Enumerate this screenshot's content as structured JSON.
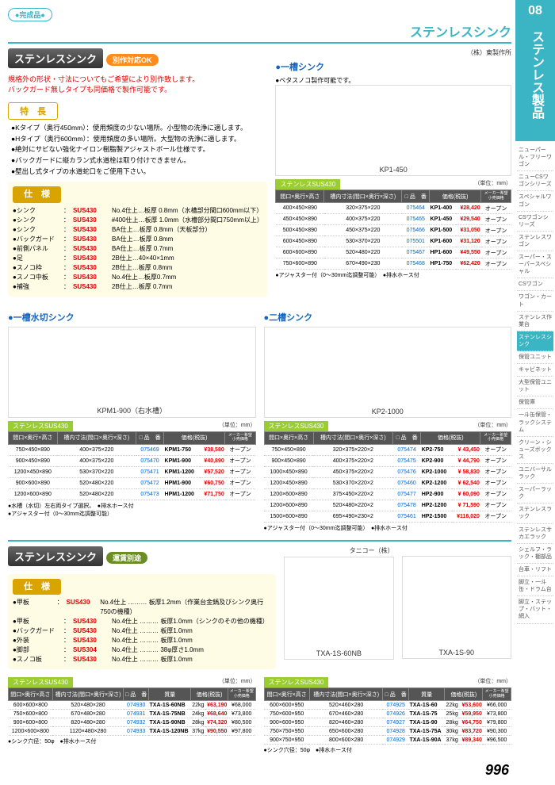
{
  "category": {
    "num": "08",
    "title": "ステンレス製品"
  },
  "sideItems": [
    "ニューパール・フリーワゴン",
    "ニューCSワゴンシリーズ",
    "スペシャルワゴン",
    "CSワゴンシリーズ",
    "ステンレスワゴン",
    "スーパー・スーパースペシャル",
    "CSワゴン",
    "ワゴン・カート",
    "ステンレス作業台",
    "ステンレスシンク",
    "保管ユニット",
    "キャビネット",
    "大型保管ユニット",
    "保管庫",
    "一斗缶保管・ラックシステム",
    "クリーン・シューズボックス",
    "ユニバーサルラック",
    "スーパーラック",
    "ステンレスラック",
    "ステンレスサカエラック",
    "シェルフ・ラック・棚部品",
    "台車・リフト",
    "脚立・一斗缶・ドラム台",
    "脚立・ステップ・バット・網入"
  ],
  "sideActive": 9,
  "badgeComplete": "●完成品●",
  "pageTitle": "ステンレスシンク",
  "section1": {
    "header": "ステンレスシンク",
    "badge": "別作対応OK",
    "redNote": "規格外の形状・寸法についてもご希望により別作致します。\nバックガード無しタイプも同価格で製作可能です。",
    "featureHdr": "特　長",
    "features": [
      "●Kタイプ（奥行450mm）：使用頻度の少ない場所。小型物の洗浄に適します。",
      "●Hタイプ（奥行600mm）：使用頻度の多い場所。大型物の洗浄に適します。",
      "●絶対にサビない強化ナイロン樹脂製アジャストボール仕様です。",
      "●バックガードに縦カラン式水道栓は取り付けできません。",
      "●壁出し式タイプの水道蛇口をご使用下さい。"
    ],
    "specHdr": "仕　様",
    "specs": [
      {
        "label": "●シンク",
        "sus": "SUS430",
        "desc": "No.4仕上…板厚 0.8mm（水槽部分間口600mm以下）"
      },
      {
        "label": "●シンク",
        "sus": "SUS430",
        "desc": "#400仕上…板厚 1.0mm（水槽部分間口750mm以上）"
      },
      {
        "label": "●シンク",
        "sus": "SUS430",
        "desc": "BA仕上…板厚 0.8mm（天板部分）"
      },
      {
        "label": "●バックガード",
        "sus": "SUS430",
        "desc": "BA仕上…板厚 0.8mm"
      },
      {
        "label": "●前側パネル",
        "sus": "SUS430",
        "desc": "BA仕上…板厚 0.7mm"
      },
      {
        "label": "●足",
        "sus": "SUS430",
        "desc": "2B仕上…40×40×1mm"
      },
      {
        "label": "●スノコ枠",
        "sus": "SUS430",
        "desc": "2B仕上…板厚 0.8mm"
      },
      {
        "label": "●スノコ中板",
        "sus": "SUS430",
        "desc": "No.4仕上…板厚0.7mm"
      },
      {
        "label": "●補強",
        "sus": "SUS430",
        "desc": "2B仕上…板厚 0.7mm"
      }
    ]
  },
  "maker1": "（株）東製作所",
  "products": [
    {
      "title": "一槽シンク",
      "pre": "●ベタスノコ製作可能です。",
      "diagram": "KP1-450",
      "mat": "ステンレスSUS430",
      "unit": "（単位：mm）",
      "headers": [
        "間口×奥行×高さ",
        "槽内寸法(間口×奥行×深さ)",
        "□ 品　番",
        "価格(税抜)",
        ""
      ],
      "rows": [
        [
          "400×450×890",
          "320×375×220",
          "075464",
          "KP1-400",
          "¥28,420",
          "オープン"
        ],
        [
          "450×450×890",
          "400×375×220",
          "075465",
          "KP1-450",
          "¥29,540",
          "オープン"
        ],
        [
          "500×450×890",
          "450×375×220",
          "075466",
          "KP1-500",
          "¥31,050",
          "オープン"
        ],
        [
          "600×450×890",
          "530×370×220",
          "075501",
          "KP1-600",
          "¥31,120",
          "オープン"
        ],
        [
          "600×600×890",
          "520×480×220",
          "075467",
          "HP1-600",
          "¥49,550",
          "オープン"
        ],
        [
          "750×600×890",
          "670×490×230",
          "075468",
          "HP1-750",
          "¥62,420",
          "オープン"
        ]
      ],
      "note": "●アジャスター付（0～30mm迄調整可能）　●排水ホース付"
    },
    {
      "title": "一槽水切シンク",
      "diagram": "KPM1-900（右水槽）",
      "mat": "ステンレスSUS430",
      "unit": "（単位：mm）",
      "headers": [
        "間口×奥行×高さ",
        "槽内寸法(間口×奥行×深さ)",
        "□ 品　番",
        "価格(税抜)",
        ""
      ],
      "rows": [
        [
          "750×450×890",
          "400×375×220",
          "075469",
          "KPM1-750",
          "¥38,580",
          "オープン"
        ],
        [
          "900×450×890",
          "400×375×220",
          "075470",
          "KPM1-900",
          "¥40,890",
          "オープン"
        ],
        [
          "1200×450×890",
          "530×370×220",
          "075471",
          "KPM1-1200",
          "¥57,520",
          "オープン"
        ],
        [
          "900×600×890",
          "520×480×220",
          "075472",
          "HPM1-900",
          "¥60,750",
          "オープン"
        ],
        [
          "1200×600×890",
          "520×480×220",
          "075473",
          "HPM1-1200",
          "¥71,750",
          "オープン"
        ]
      ],
      "note": "●水槽（水切）左右両タイプ選択。　●排水ホース付\n●アジャスター付（0～30mm迄調整可能）"
    },
    {
      "title": "二槽シンク",
      "diagram": "KP2-1000",
      "mat": "ステンレスSUS430",
      "unit": "（単位：mm）",
      "headers": [
        "間口×奥行×高さ",
        "槽内寸法(間口×奥行×深さ)",
        "□ 品　番",
        "価格(税抜)",
        ""
      ],
      "rows": [
        [
          "750×450×890",
          "320×375×220×2",
          "075474",
          "KP2-750",
          "¥ 43,450",
          "オープン"
        ],
        [
          "900×450×890",
          "400×375×220×2",
          "075475",
          "KP2-900",
          "¥ 44,790",
          "オープン"
        ],
        [
          "1000×450×890",
          "450×375×220×2",
          "075476",
          "KP2-1000",
          "¥ 58,830",
          "オープン"
        ],
        [
          "1200×450×890",
          "530×370×220×2",
          "075460",
          "KP2-1200",
          "¥ 62,540",
          "オープン"
        ],
        [
          "1200×600×890",
          "375×450×220×2",
          "075477",
          "HP2-900",
          "¥ 60,090",
          "オープン"
        ],
        [
          "1200×600×890",
          "520×480×220×2",
          "075478",
          "HP2-1200",
          "¥ 71,590",
          "オープン"
        ],
        [
          "1500×600×890",
          "695×490×230×2",
          "075461",
          "HP2-1500",
          "¥116,020",
          "オープン"
        ]
      ],
      "note": "●アジャスター付（0～30mm迄調整可能）　●排水ホース付"
    }
  ],
  "section2": {
    "header": "ステンレスシンク",
    "badge": "運賃別途",
    "specHdr": "仕　様",
    "specs": [
      {
        "label": "●甲板",
        "sus": "SUS430",
        "desc": "No.4仕上 ……… 板厚1.2mm（作業台金鍋及びシンク奥行750の機種）"
      },
      {
        "label": "●甲板",
        "sus": "SUS430",
        "desc": "No.4仕上 ……… 板厚1.0mm（シンクのその他の機種）"
      },
      {
        "label": "●バックガード",
        "sus": "SUS430",
        "desc": "No.4仕上 ……… 板厚1.0mm"
      },
      {
        "label": "●外装",
        "sus": "SUS430",
        "desc": "No.4仕上 ……… 板厚1.0mm"
      },
      {
        "label": "●脚部",
        "sus": "SUS304",
        "desc": "No.4仕上 ……… 38φ厚さ1.0mm"
      },
      {
        "label": "●スノコ板",
        "sus": "SUS430",
        "desc": "No.4仕上 ……… 板厚1.0mm"
      }
    ]
  },
  "maker2": "タニコー（株）",
  "products2": [
    {
      "diagram": "TXA-1S-60NB",
      "mat": "ステンレスSUS430",
      "unit": "（単位：mm）",
      "headers": [
        "間口×奥行×高さ",
        "槽内寸法(間口×奥行×深さ)",
        "□ 品　番",
        "質量",
        "価格(税抜)",
        ""
      ],
      "rows": [
        [
          "600×600×800",
          "520×480×280",
          "074930",
          "TXA-1S-60NB",
          "22kg",
          "¥63,190",
          "¥68,000"
        ],
        [
          "750×600×800",
          "670×480×280",
          "074931",
          "TXA-1S-75NB",
          "24kg",
          "¥68,640",
          "¥73,800"
        ],
        [
          "900×600×800",
          "820×480×280",
          "074932",
          "TXA-1S-90NB",
          "28kg",
          "¥74,320",
          "¥80,500"
        ],
        [
          "1200×600×800",
          "1120×480×280",
          "074933",
          "TXA-1S-120NB",
          "37kg",
          "¥90,550",
          "¥97,800"
        ]
      ],
      "note": "●シンク穴径：50φ　●排水ホース付"
    },
    {
      "diagram": "TXA-1S-90",
      "mat": "ステンレスSUS430",
      "unit": "（単位：mm）",
      "headers": [
        "間口×奥行×高さ",
        "槽内寸法(間口×奥行×深さ)",
        "□ 品　番",
        "質量",
        "価格(税抜)",
        ""
      ],
      "rows": [
        [
          "600×600×950",
          "520×460×280",
          "074925",
          "TXA-1S-60",
          "22kg",
          "¥53,600",
          "¥66,000"
        ],
        [
          "750×600×950",
          "670×460×280",
          "074926",
          "TXA-1S-75",
          "25kg",
          "¥59,950",
          "¥73,800"
        ],
        [
          "900×600×950",
          "820×460×280",
          "074927",
          "TXA-1S-90",
          "28kg",
          "¥64,750",
          "¥79,800"
        ],
        [
          "750×750×950",
          "650×600×280",
          "074928",
          "TXA-1S-75A",
          "30kg",
          "¥83,720",
          "¥90,300"
        ],
        [
          "900×750×950",
          "800×600×280",
          "074929",
          "TXA-1S-90A",
          "37kg",
          "¥89,340",
          "¥96,500"
        ]
      ],
      "note": "●シンク穴径：50φ　●排水ホース付"
    }
  ],
  "pageNum": "996"
}
